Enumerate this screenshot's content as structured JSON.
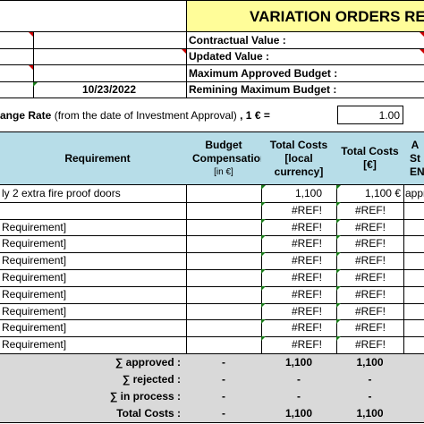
{
  "title": "VARIATION ORDERS REG",
  "summary": {
    "contractual_value_label": "Contractual Value :",
    "updated_value_label": "Updated Value :",
    "max_approved_budget_label": "Maximum Approved Budget :",
    "remaining_max_budget_label": "Remining Maximum Budget :",
    "date": "10/23/2022"
  },
  "exchange": {
    "label_bold_start": "ange Rate",
    "label_note": " (from the date of Investment Approval) ",
    "label_bold_end": ", 1 € =",
    "value": "1.00"
  },
  "table": {
    "headers": {
      "requirement": "Requirement",
      "budget_compensation": "Budget Compensation",
      "budget_compensation_unit": "[in €]",
      "total_costs_local": "Total Costs [local currency]",
      "total_costs_eur": "Total Costs [€]",
      "approval_partial": "A St EN"
    },
    "rows": [
      {
        "requirement": "ly 2 extra fire proof doors",
        "budget": "",
        "local": "1,100",
        "eur": "1,100 €",
        "status": "appr"
      },
      {
        "requirement": "",
        "budget": "",
        "local": "#REF!",
        "eur": "#REF!",
        "status": ""
      },
      {
        "requirement": "Requirement]",
        "budget": "",
        "local": "#REF!",
        "eur": "#REF!",
        "status": ""
      },
      {
        "requirement": "Requirement]",
        "budget": "",
        "local": "#REF!",
        "eur": "#REF!",
        "status": ""
      },
      {
        "requirement": "Requirement]",
        "budget": "",
        "local": "#REF!",
        "eur": "#REF!",
        "status": ""
      },
      {
        "requirement": "Requirement]",
        "budget": "",
        "local": "#REF!",
        "eur": "#REF!",
        "status": ""
      },
      {
        "requirement": "Requirement]",
        "budget": "",
        "local": "#REF!",
        "eur": "#REF!",
        "status": ""
      },
      {
        "requirement": "Requirement]",
        "budget": "",
        "local": "#REF!",
        "eur": "#REF!",
        "status": ""
      },
      {
        "requirement": "Requirement]",
        "budget": "",
        "local": "#REF!",
        "eur": "#REF!",
        "status": ""
      },
      {
        "requirement": "Requirement]",
        "budget": "",
        "local": "#REF!",
        "eur": "#REF!",
        "status": ""
      }
    ],
    "totals": [
      {
        "label": "∑ approved :",
        "budget": "-",
        "local": "1,100",
        "eur": "1,100"
      },
      {
        "label": "∑ rejected :",
        "budget": "-",
        "local": "-",
        "eur": "-"
      },
      {
        "label": "∑ in process :",
        "budget": "-",
        "local": "-",
        "eur": "-"
      },
      {
        "label": "Total Costs :",
        "budget": "-",
        "local": "1,100",
        "eur": "1,100"
      }
    ]
  }
}
